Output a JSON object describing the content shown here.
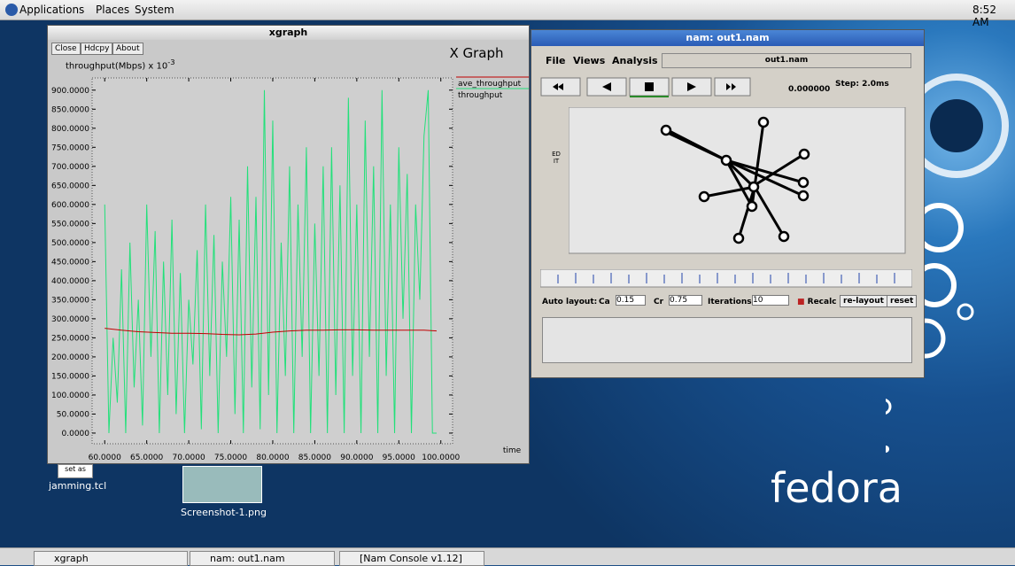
{
  "top_panel": {
    "menus": [
      "Applications",
      "Places",
      "System"
    ],
    "clock": "8:52 AM"
  },
  "xgraph_window": {
    "title": "xgraph",
    "buttons": [
      "Close",
      "Hdcpy",
      "About"
    ]
  },
  "chart_data": {
    "type": "line",
    "title": "X Graph",
    "y_label": "throughput(Mbps) x 10",
    "y_label_exponent": "-3",
    "x_label": "time",
    "xlim": [
      58.5,
      101.4
    ],
    "ylim": [
      -28,
      932
    ],
    "xticks": [
      {
        "value": 60,
        "label": "60.0000"
      },
      {
        "value": 65,
        "label": "65.0000"
      },
      {
        "value": 70,
        "label": "70.0000"
      },
      {
        "value": 75,
        "label": "75.0000"
      },
      {
        "value": 80,
        "label": "80.0000"
      },
      {
        "value": 85,
        "label": "85.0000"
      },
      {
        "value": 90,
        "label": "90.0000"
      },
      {
        "value": 95,
        "label": "95.0000"
      },
      {
        "value": 100,
        "label": "100.0000"
      }
    ],
    "yticks": [
      {
        "value": 0,
        "label": "0.0000"
      },
      {
        "value": 50,
        "label": "50.0000"
      },
      {
        "value": 100,
        "label": "100.0000"
      },
      {
        "value": 150,
        "label": "150.0000"
      },
      {
        "value": 200,
        "label": "200.0000"
      },
      {
        "value": 250,
        "label": "250.0000"
      },
      {
        "value": 300,
        "label": "300.0000"
      },
      {
        "value": 350,
        "label": "350.0000"
      },
      {
        "value": 400,
        "label": "400.0000"
      },
      {
        "value": 450,
        "label": "450.0000"
      },
      {
        "value": 500,
        "label": "500.0000"
      },
      {
        "value": 550,
        "label": "550.0000"
      },
      {
        "value": 600,
        "label": "600.0000"
      },
      {
        "value": 650,
        "label": "650.0000"
      },
      {
        "value": 700,
        "label": "700.0000"
      },
      {
        "value": 750,
        "label": "750.0000"
      },
      {
        "value": 800,
        "label": "800.0000"
      },
      {
        "value": 850,
        "label": "850.0000"
      },
      {
        "value": 900,
        "label": "900.0000"
      }
    ],
    "series": [
      {
        "name": "ave_throughput",
        "color": "#c00000",
        "x": [
          60,
          62,
          64,
          66,
          68,
          70,
          72,
          74,
          76,
          78,
          80,
          82,
          84,
          86,
          88,
          90,
          92,
          94,
          96,
          98,
          99.5
        ],
        "values": [
          275,
          270,
          266,
          264,
          262,
          262,
          261,
          259,
          258,
          260,
          265,
          268,
          270,
          270,
          271,
          271,
          270,
          270,
          270,
          270,
          268
        ]
      },
      {
        "name": "throughput",
        "color": "#22e07a",
        "x": [
          60,
          60.5,
          61,
          61.5,
          62,
          62.5,
          63,
          63.5,
          64,
          64.5,
          65,
          65.5,
          66,
          66.5,
          67,
          67.5,
          68,
          68.5,
          69,
          69.5,
          70,
          70.5,
          71,
          71.5,
          72,
          72.5,
          73,
          73.5,
          74,
          74.5,
          75,
          75.5,
          76,
          76.5,
          77,
          77.5,
          78,
          78.5,
          79,
          79.5,
          80,
          80.5,
          81,
          81.5,
          82,
          82.5,
          83,
          83.5,
          84,
          84.5,
          85,
          85.5,
          86,
          86.5,
          87,
          87.5,
          88,
          88.5,
          89,
          89.5,
          90,
          90.5,
          91,
          91.5,
          92,
          92.5,
          93,
          93.5,
          94,
          94.5,
          95,
          95.5,
          96,
          96.5,
          97,
          97.5,
          98,
          98.5,
          99,
          99.5
        ],
        "values": [
          600,
          0,
          250,
          80,
          430,
          0,
          500,
          120,
          350,
          20,
          600,
          200,
          530,
          0,
          450,
          100,
          560,
          50,
          420,
          0,
          350,
          180,
          480,
          10,
          600,
          150,
          520,
          0,
          450,
          200,
          620,
          50,
          560,
          0,
          700,
          120,
          620,
          10,
          900,
          100,
          820,
          0,
          500,
          150,
          700,
          0,
          600,
          200,
          750,
          0,
          550,
          150,
          700,
          0,
          750,
          100,
          650,
          0,
          880,
          150,
          600,
          0,
          820,
          200,
          700,
          0,
          900,
          150,
          600,
          0,
          750,
          300,
          680,
          0,
          600,
          350,
          780,
          900,
          0,
          0
        ]
      }
    ]
  },
  "nam_window": {
    "title": "nam: out1.nam",
    "menus": [
      "File",
      "Views",
      "Analysis"
    ],
    "file_field": "out1.nam",
    "time": "0.000000",
    "step": "Step: 2.0ms",
    "edit_button": "ED IT",
    "auto_layout": {
      "label": "Auto layout:",
      "ca_label": "Ca",
      "ca": "0.15",
      "cr_label": "Cr",
      "cr": "0.75",
      "iterations_label": "Iterations",
      "iterations": "10",
      "recalc": "Recalc",
      "relayout": "re-layout",
      "reset": "reset"
    }
  },
  "desktop": {
    "icons": [
      "jamming.tcl",
      "Screenshot-1.png"
    ],
    "icon_caption": "set as",
    "logo": "fedora"
  },
  "taskbar": {
    "items": [
      "xgraph",
      "nam: out1.nam",
      "[Nam Console v1.12]"
    ]
  }
}
